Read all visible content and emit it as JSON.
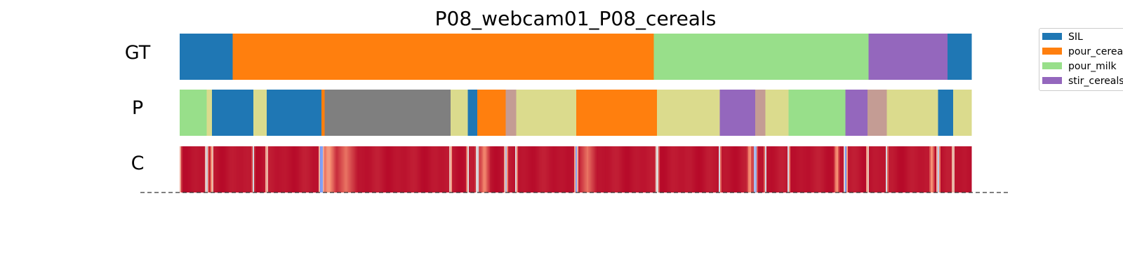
{
  "chart_data": {
    "type": "segmentation",
    "title": "P08_webcam01_P08_cereals",
    "rows": [
      {
        "label": "GT",
        "segments": [
          {
            "start": 0.0,
            "end": 0.067,
            "color": "#1f77b4"
          },
          {
            "start": 0.067,
            "end": 0.599,
            "color": "#ff7f0e"
          },
          {
            "start": 0.599,
            "end": 0.87,
            "color": "#98df8a"
          },
          {
            "start": 0.87,
            "end": 0.97,
            "color": "#9467bd"
          },
          {
            "start": 0.97,
            "end": 1.0,
            "color": "#1f77b4"
          }
        ]
      },
      {
        "label": "P",
        "segments": [
          {
            "start": 0.0,
            "end": 0.034,
            "color": "#98df8a"
          },
          {
            "start": 0.034,
            "end": 0.041,
            "color": "#dbdb8d"
          },
          {
            "start": 0.041,
            "end": 0.093,
            "color": "#1f77b4"
          },
          {
            "start": 0.093,
            "end": 0.11,
            "color": "#dbdb8d"
          },
          {
            "start": 0.11,
            "end": 0.179,
            "color": "#1f77b4"
          },
          {
            "start": 0.179,
            "end": 0.183,
            "color": "#ff7f0e"
          },
          {
            "start": 0.183,
            "end": 0.342,
            "color": "#7f7f7f"
          },
          {
            "start": 0.342,
            "end": 0.364,
            "color": "#dbdb8d"
          },
          {
            "start": 0.364,
            "end": 0.376,
            "color": "#1f77b4"
          },
          {
            "start": 0.376,
            "end": 0.412,
            "color": "#ff7f0e"
          },
          {
            "start": 0.412,
            "end": 0.425,
            "color": "#c49c94"
          },
          {
            "start": 0.425,
            "end": 0.501,
            "color": "#dbdb8d"
          },
          {
            "start": 0.501,
            "end": 0.603,
            "color": "#ff7f0e"
          },
          {
            "start": 0.603,
            "end": 0.682,
            "color": "#dbdb8d"
          },
          {
            "start": 0.682,
            "end": 0.727,
            "color": "#9467bd"
          },
          {
            "start": 0.727,
            "end": 0.74,
            "color": "#c49c94"
          },
          {
            "start": 0.74,
            "end": 0.769,
            "color": "#dbdb8d"
          },
          {
            "start": 0.769,
            "end": 0.841,
            "color": "#98df8a"
          },
          {
            "start": 0.841,
            "end": 0.869,
            "color": "#9467bd"
          },
          {
            "start": 0.869,
            "end": 0.893,
            "color": "#c49c94"
          },
          {
            "start": 0.893,
            "end": 0.958,
            "color": "#dbdb8d"
          },
          {
            "start": 0.958,
            "end": 0.977,
            "color": "#1f77b4"
          },
          {
            "start": 0.977,
            "end": 1.0,
            "color": "#dbdb8d"
          }
        ]
      },
      {
        "label": "C",
        "colormap": "coolwarm",
        "base_value": 0.97,
        "dips": [
          {
            "t": 0.0,
            "w": 0.003,
            "v": 0.55
          },
          {
            "t": 0.034,
            "w": 0.003,
            "v": 0.35
          },
          {
            "t": 0.041,
            "w": 0.002,
            "v": 0.45
          },
          {
            "t": 0.093,
            "w": 0.002,
            "v": 0.45
          },
          {
            "t": 0.11,
            "w": 0.002,
            "v": 0.4
          },
          {
            "t": 0.179,
            "w": 0.004,
            "v": 0.05
          },
          {
            "t": 0.188,
            "w": 0.012,
            "v": 0.7
          },
          {
            "t": 0.21,
            "w": 0.015,
            "v": 0.8
          },
          {
            "t": 0.342,
            "w": 0.002,
            "v": 0.4
          },
          {
            "t": 0.364,
            "w": 0.002,
            "v": 0.4
          },
          {
            "t": 0.376,
            "w": 0.003,
            "v": 0.3
          },
          {
            "t": 0.385,
            "w": 0.008,
            "v": 0.75
          },
          {
            "t": 0.412,
            "w": 0.003,
            "v": 0.35
          },
          {
            "t": 0.425,
            "w": 0.002,
            "v": 0.4
          },
          {
            "t": 0.501,
            "w": 0.003,
            "v": 0.25
          },
          {
            "t": 0.515,
            "w": 0.012,
            "v": 0.8
          },
          {
            "t": 0.603,
            "w": 0.003,
            "v": 0.35
          },
          {
            "t": 0.682,
            "w": 0.002,
            "v": 0.4
          },
          {
            "t": 0.72,
            "w": 0.004,
            "v": 0.7
          },
          {
            "t": 0.727,
            "w": 0.003,
            "v": 0.1
          },
          {
            "t": 0.74,
            "w": 0.002,
            "v": 0.4
          },
          {
            "t": 0.769,
            "w": 0.002,
            "v": 0.35
          },
          {
            "t": 0.83,
            "w": 0.004,
            "v": 0.7
          },
          {
            "t": 0.841,
            "w": 0.003,
            "v": 0.15
          },
          {
            "t": 0.869,
            "w": 0.002,
            "v": 0.4
          },
          {
            "t": 0.893,
            "w": 0.002,
            "v": 0.4
          },
          {
            "t": 0.95,
            "w": 0.004,
            "v": 0.7
          },
          {
            "t": 0.958,
            "w": 0.003,
            "v": 0.35
          },
          {
            "t": 0.977,
            "w": 0.002,
            "v": 0.35
          }
        ]
      }
    ],
    "legend": [
      {
        "label": "SIL",
        "color": "#1f77b4"
      },
      {
        "label": "pour_cereals",
        "color": "#ff7f0e"
      },
      {
        "label": "pour_milk",
        "color": "#98df8a"
      },
      {
        "label": "stir_cereals",
        "color": "#9467bd"
      }
    ],
    "baseline_style": "dashed",
    "legend_position": "upper-right"
  }
}
